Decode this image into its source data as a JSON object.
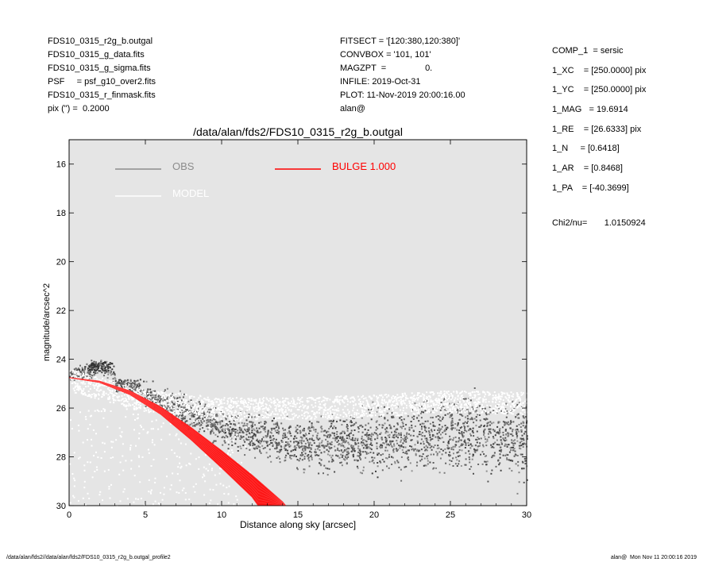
{
  "header_left": [
    "FDS10_0315_r2g_b.outgal",
    "FDS10_0315_g_data.fits",
    "FDS10_0315_g_sigma.fits",
    "PSF     = psf_g10_over2.fits",
    "FDS10_0315_r_finmask.fits",
    "pix (\") =  0.2000"
  ],
  "header_mid": [
    "FITSECT = '[120:380,120:380]'",
    "CONVBOX = '101, 101'",
    "MAGZPT  =                0.",
    "INFILE: 2019-Oct-31",
    "PLOT: 11-Nov-2019 20:00:16.00",
    "alan@"
  ],
  "header_right": [
    "COMP_1  = sersic",
    "1_XC    = [250.0000] pix",
    "1_YC    = [250.0000] pix",
    "1_MAG   = 19.6914",
    "1_RE    = [26.6333] pix",
    "1_N     = [0.6418]",
    "1_AR    = [0.8468]",
    "1_PA    = [-40.3699]"
  ],
  "chi2": "Chi2/nu=       1.0150924",
  "footer_left": "/data/alan/fds2//data/alan/fds2/FDS10_0315_r2g_b.outgal_profile2",
  "footer_right": "alan@  Mon Nov 11 20:00:16 2019",
  "colors": {
    "panel_bg": "#e5e5e5",
    "obs": "#555555",
    "obs_legend": "#8c8c8c",
    "model": "#ffffff",
    "bulge": "#ff0000"
  },
  "chart_data": {
    "type": "scatter",
    "title": "/data/alan/fds2/FDS10_0315_r2g_b.outgal",
    "xlabel": "Distance along sky [arcsec]",
    "ylabel": "magnitude/arcsec^2",
    "xlim": [
      0,
      30
    ],
    "ylim": [
      30,
      15
    ],
    "y_inverted": true,
    "xticks": [
      0,
      5,
      10,
      15,
      20,
      25,
      30
    ],
    "yticks": [
      16,
      18,
      20,
      22,
      24,
      26,
      28,
      30
    ],
    "legend": [
      {
        "name": "OBS",
        "color": "#8c8c8c"
      },
      {
        "name": "MODEL",
        "color": "#ffffff"
      },
      {
        "name": "BULGE  1.000",
        "color": "#ff0000"
      }
    ],
    "series": [
      {
        "name": "OBS",
        "description_points": [
          [
            0,
            24.7
          ],
          [
            2,
            24.2
          ],
          [
            5,
            25.4
          ],
          [
            10,
            26.8
          ],
          [
            15,
            27.5
          ],
          [
            20,
            27.3
          ],
          [
            25,
            27.0
          ],
          [
            30,
            27.2
          ]
        ],
        "scatter_range_mag": [
          24.8,
          30
        ]
      },
      {
        "name": "MODEL",
        "description_points": [
          [
            0,
            24.75
          ],
          [
            5,
            25.6
          ],
          [
            10,
            25.9
          ],
          [
            15,
            25.9
          ],
          [
            20,
            25.8
          ],
          [
            25,
            25.6
          ],
          [
            30,
            25.7
          ]
        ]
      },
      {
        "name": "BULGE  1.000",
        "upper": [
          [
            0,
            24.75
          ],
          [
            2,
            24.9
          ],
          [
            4,
            25.3
          ],
          [
            6,
            25.95
          ],
          [
            8,
            26.8
          ],
          [
            10,
            27.75
          ],
          [
            12,
            28.75
          ],
          [
            14,
            29.85
          ],
          [
            14.2,
            30
          ]
        ],
        "lower": [
          [
            0,
            24.75
          ],
          [
            2,
            24.95
          ],
          [
            4,
            25.45
          ],
          [
            6,
            26.25
          ],
          [
            8,
            27.3
          ],
          [
            10,
            28.45
          ],
          [
            12,
            29.65
          ],
          [
            12.4,
            30
          ]
        ]
      }
    ]
  }
}
